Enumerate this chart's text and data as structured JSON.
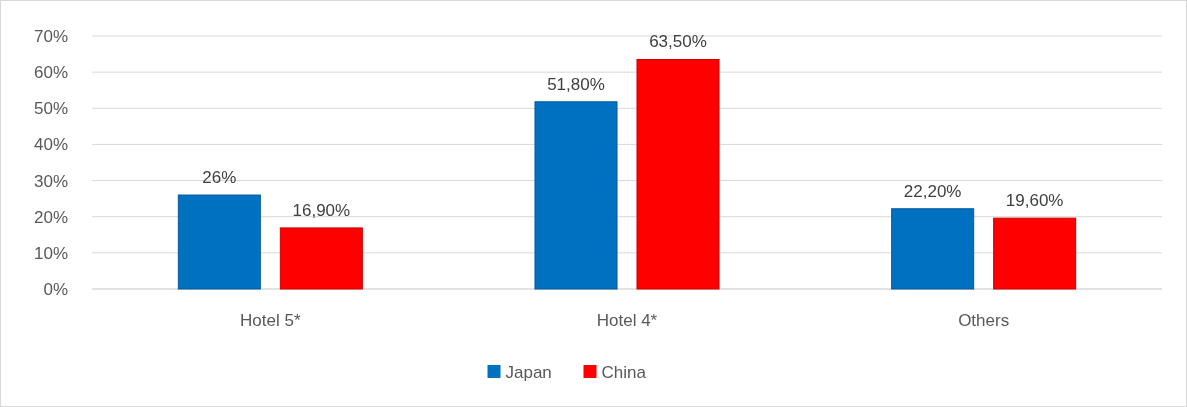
{
  "chart_data": {
    "type": "bar",
    "categories": [
      "Hotel 5*",
      "Hotel 4*",
      "Others"
    ],
    "series": [
      {
        "name": "Japan",
        "color": "#0070c0",
        "values": [
          26,
          51.8,
          22.2
        ],
        "value_labels": [
          "26%",
          "51,80%",
          "22,20%"
        ]
      },
      {
        "name": "China",
        "color": "#ff0000",
        "values": [
          16.9,
          63.5,
          19.6
        ],
        "value_labels": [
          "16,90%",
          "63,50%",
          "19,60%"
        ]
      }
    ],
    "ylim": [
      0,
      70
    ],
    "yticks": [
      {
        "value": 0,
        "label": "0%"
      },
      {
        "value": 10,
        "label": "10%"
      },
      {
        "value": 20,
        "label": "20%"
      },
      {
        "value": 30,
        "label": "30%"
      },
      {
        "value": 40,
        "label": "40%"
      },
      {
        "value": 50,
        "label": "50%"
      },
      {
        "value": 60,
        "label": "60%"
      },
      {
        "value": 70,
        "label": "70%"
      }
    ],
    "grid": "y",
    "legend": "bottom"
  }
}
